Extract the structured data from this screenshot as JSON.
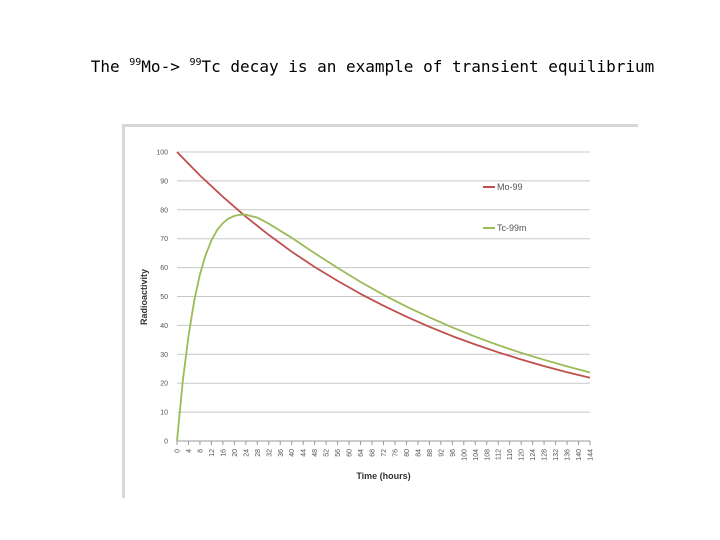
{
  "slide": {
    "title_prefix": "The ",
    "sup1": "99",
    "mid": "Mo-> ",
    "sup2": "99",
    "suffix": "Tc decay is an example of transient equilibrium"
  },
  "colors": {
    "mo": "#c0504d",
    "tc": "#9bbb59",
    "grid": "#c8c8c8"
  },
  "chart_data": {
    "type": "line",
    "title": "",
    "xlabel": "Time (hours)",
    "ylabel": "Radioactivity",
    "ylim": [
      0,
      100
    ],
    "yticks": [
      0,
      10,
      20,
      30,
      40,
      50,
      60,
      70,
      80,
      90,
      100
    ],
    "xticks": [
      0,
      4,
      8,
      12,
      16,
      20,
      24,
      28,
      32,
      36,
      40,
      44,
      48,
      52,
      56,
      60,
      64,
      68,
      72,
      76,
      80,
      84,
      88,
      92,
      96,
      100,
      104,
      108,
      112,
      116,
      120,
      124,
      128,
      132,
      136,
      140,
      144
    ],
    "grid": true,
    "legend_position": "right",
    "series": [
      {
        "name": "Mo-99",
        "color": "#c0504d",
        "x": [
          0,
          8,
          16,
          24,
          32,
          40,
          48,
          56,
          64,
          72,
          80,
          88,
          96,
          104,
          112,
          120,
          128,
          136,
          144
        ],
        "values": [
          100,
          91.9,
          84.5,
          77.6,
          71.3,
          65.5,
          60.2,
          55.4,
          50.9,
          46.8,
          43.0,
          39.5,
          36.3,
          33.4,
          30.7,
          28.2,
          25.9,
          23.8,
          21.9
        ]
      },
      {
        "name": "Tc-99m",
        "color": "#9bbb59",
        "x": [
          0,
          2,
          4,
          6,
          8,
          10,
          12,
          14,
          16,
          18,
          20,
          22,
          24,
          28,
          32,
          40,
          48,
          56,
          64,
          72,
          80,
          88,
          96,
          104,
          112,
          120,
          128,
          136,
          144
        ],
        "values": [
          0,
          20.5,
          36.3,
          48.5,
          57.6,
          64.4,
          69.4,
          73.0,
          75.4,
          77.0,
          77.9,
          78.3,
          78.3,
          77.3,
          75.2,
          70.3,
          65.0,
          59.9,
          55.0,
          50.6,
          46.5,
          42.8,
          39.3,
          36.1,
          33.2,
          30.5,
          28.1,
          25.8,
          23.7
        ]
      }
    ]
  }
}
